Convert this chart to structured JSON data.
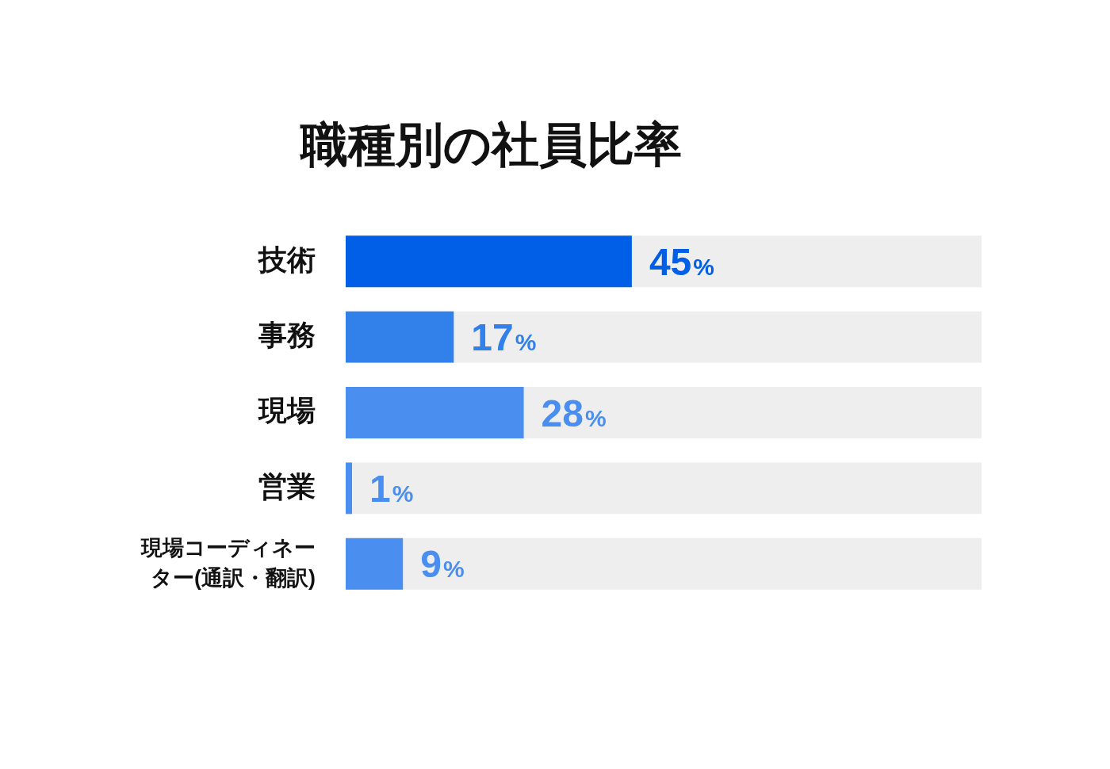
{
  "chart_data": {
    "type": "bar",
    "orientation": "horizontal",
    "title": "職種別の社員比率",
    "categories": [
      "技術",
      "事務",
      "現場",
      "営業",
      "現場コーディネーター(通訳・翻訳)"
    ],
    "values": [
      45,
      17,
      28,
      1,
      9
    ],
    "colors": [
      "#005fe6",
      "#3280ea",
      "#4a8ef0",
      "#4a8ef0",
      "#4a8ef0"
    ],
    "value_labels": [
      "45%",
      "17%",
      "28%",
      "1%",
      "9%"
    ],
    "xlim": [
      0,
      100
    ],
    "tick_labels": "y"
  }
}
